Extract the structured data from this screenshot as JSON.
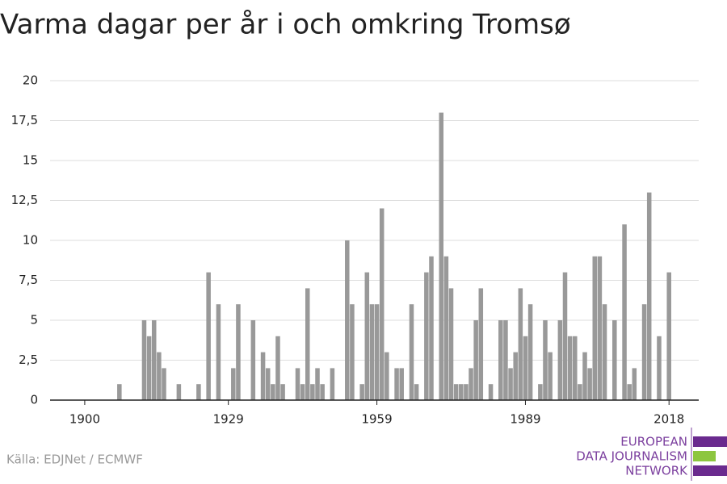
{
  "chart_data": {
    "type": "bar",
    "title": "Varma dagar per år i och omkring Tromsø",
    "source": "Källa: EDJNet / ECMWF",
    "logo": [
      "EUROPEAN",
      "DATA JOURNALISM",
      "NETWORK"
    ],
    "color": "#999999",
    "grid": true,
    "x": [
      1907,
      1912,
      1913,
      1914,
      1915,
      1916,
      1919,
      1923,
      1925,
      1927,
      1930,
      1931,
      1934,
      1936,
      1937,
      1938,
      1939,
      1940,
      1943,
      1944,
      1945,
      1946,
      1947,
      1948,
      1950,
      1953,
      1954,
      1956,
      1957,
      1958,
      1959,
      1960,
      1961,
      1963,
      1964,
      1966,
      1967,
      1969,
      1970,
      1972,
      1973,
      1974,
      1975,
      1976,
      1977,
      1978,
      1979,
      1980,
      1982,
      1984,
      1985,
      1986,
      1987,
      1988,
      1989,
      1990,
      1992,
      1993,
      1994,
      1996,
      1997,
      1998,
      1999,
      2000,
      2001,
      2002,
      2003,
      2004,
      2005,
      2007,
      2009,
      2010,
      2011,
      2013,
      2014,
      2016,
      2018
    ],
    "values": [
      1,
      5,
      4,
      5,
      3,
      2,
      1,
      1,
      8,
      6,
      2,
      6,
      5,
      3,
      2,
      1,
      4,
      1,
      2,
      1,
      7,
      1,
      2,
      1,
      2,
      10,
      6,
      1,
      8,
      6,
      6,
      12,
      3,
      2,
      2,
      6,
      1,
      8,
      9,
      18,
      9,
      7,
      1,
      1,
      1,
      2,
      5,
      7,
      1,
      5,
      5,
      2,
      3,
      7,
      4,
      6,
      1,
      5,
      3,
      5,
      8,
      4,
      4,
      1,
      3,
      2,
      9,
      9,
      6,
      5,
      11,
      1,
      2,
      6,
      13,
      4,
      8
    ],
    "xlim": [
      1893,
      2024
    ],
    "xticks": [
      1900,
      1929,
      1959,
      1989,
      2018
    ],
    "ylim": [
      0,
      20
    ],
    "yticks": [
      0,
      {
        "value": 2.5,
        "label": "2,5"
      },
      5,
      {
        "value": 7.5,
        "label": "7,5"
      },
      10,
      {
        "value": 12.5,
        "label": "12,5"
      },
      15,
      {
        "value": 17.5,
        "label": "17,5"
      },
      20
    ]
  }
}
